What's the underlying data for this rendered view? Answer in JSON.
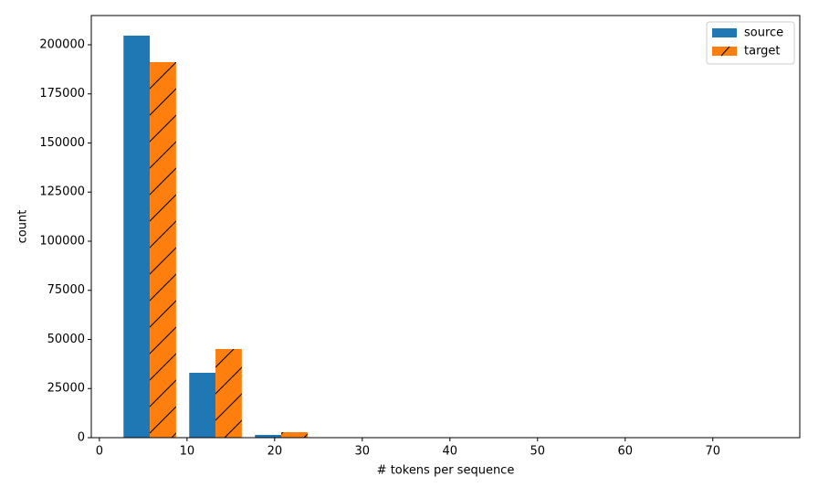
{
  "chart_data": {
    "type": "histogram",
    "bins": [
      2,
      9.5,
      17,
      24.5,
      32,
      39.5,
      47,
      54.5,
      62,
      69.5,
      77
    ],
    "series": [
      {
        "name": "source",
        "color": "#1f77b4",
        "values": [
          204650,
          33020,
          1400,
          0,
          0,
          0,
          0,
          0,
          0,
          0
        ]
      },
      {
        "name": "target",
        "color": "#ff7f0e",
        "hatch": "/",
        "values": [
          191160,
          45120,
          2790,
          0,
          0,
          0,
          0,
          0,
          0,
          0
        ]
      }
    ],
    "xlabel": "# tokens per sequence",
    "ylabel": "count",
    "xlim": [
      -0.925,
      79.925
    ],
    "xticks": [
      0,
      10,
      20,
      30,
      40,
      50,
      60,
      70
    ],
    "ylim": [
      0,
      214880
    ],
    "yticks": [
      0,
      25000,
      50000,
      75000,
      100000,
      125000,
      150000,
      175000,
      200000
    ],
    "legend": "upper right"
  }
}
